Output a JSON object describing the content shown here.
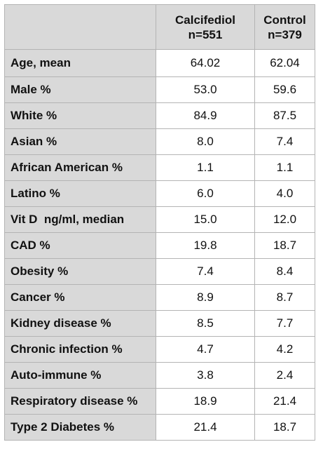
{
  "table": {
    "headers": [
      {
        "line1": "",
        "line2": ""
      },
      {
        "line1": "Calcifediol",
        "line2": "n=551"
      },
      {
        "line1": "Control",
        "line2": "n=379"
      }
    ],
    "rows": [
      {
        "label": "Age, mean",
        "calcifediol": "64.02",
        "control": "62.04"
      },
      {
        "label": "Male %",
        "calcifediol": "53.0",
        "control": "59.6"
      },
      {
        "label": "White %",
        "calcifediol": "84.9",
        "control": "87.5"
      },
      {
        "label": "Asian %",
        "calcifediol": "8.0",
        "control": "7.4"
      },
      {
        "label": "African American %",
        "calcifediol": "1.1",
        "control": "1.1"
      },
      {
        "label": "Latino %",
        "calcifediol": "6.0",
        "control": "4.0"
      },
      {
        "label": "Vit D  ng/ml, median",
        "calcifediol": "15.0",
        "control": "12.0"
      },
      {
        "label": "CAD %",
        "calcifediol": "19.8",
        "control": "18.7"
      },
      {
        "label": "Obesity %",
        "calcifediol": "7.4",
        "control": "8.4"
      },
      {
        "label": "Cancer %",
        "calcifediol": "8.9",
        "control": "8.7"
      },
      {
        "label": "Kidney disease %",
        "calcifediol": "8.5",
        "control": "7.7"
      },
      {
        "label": "Chronic infection %",
        "calcifediol": "4.7",
        "control": "4.2"
      },
      {
        "label": "Auto-immune %",
        "calcifediol": "3.8",
        "control": "2.4"
      },
      {
        "label": "Respiratory disease %",
        "calcifediol": "18.9",
        "control": "21.4"
      },
      {
        "label": "Type 2 Diabetes %",
        "calcifediol": "21.4",
        "control": "18.7"
      }
    ]
  },
  "colors": {
    "header_bg": "#d9d9d9",
    "label_bg": "#d9d9d9",
    "cell_bg": "#ffffff",
    "border": "#b4b4b4",
    "text": "#111111"
  }
}
